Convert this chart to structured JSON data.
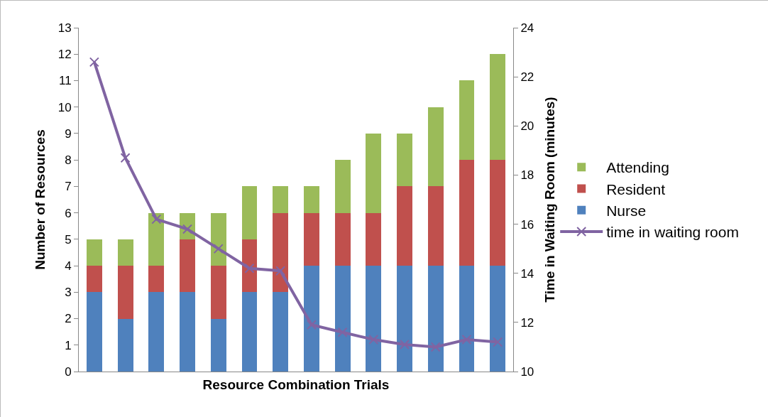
{
  "chart_data": {
    "type": "bar",
    "stacked": true,
    "xlabel": "Resource Combination Trials",
    "ylabel": "Number of Resources",
    "y2label": "Time in Waiting Room (minutes)",
    "categories": [
      null,
      null,
      null,
      null,
      null,
      null,
      null,
      null,
      null,
      null,
      null,
      null,
      null,
      null
    ],
    "series": [
      {
        "name": "Nurse",
        "color": "#4f81bd",
        "values": [
          3,
          2,
          3,
          3,
          2,
          3,
          3,
          4,
          4,
          4,
          4,
          4,
          4,
          4
        ]
      },
      {
        "name": "Resident",
        "color": "#c0504d",
        "values": [
          1,
          2,
          1,
          2,
          2,
          2,
          3,
          2,
          2,
          2,
          3,
          3,
          4,
          4
        ]
      },
      {
        "name": "Attending",
        "color": "#9bbb59",
        "values": [
          1,
          1,
          2,
          1,
          2,
          2,
          1,
          1,
          2,
          3,
          2,
          3,
          3,
          4
        ]
      },
      {
        "name": "time in waiting room",
        "type": "line",
        "axis": "y2",
        "color": "#8064a2",
        "marker": "cross",
        "values": [
          22.6,
          18.7,
          16.2,
          15.8,
          15.0,
          14.2,
          14.1,
          11.9,
          11.6,
          11.3,
          11.1,
          11.0,
          11.3,
          11.2
        ]
      }
    ],
    "ylim": [
      0,
      13
    ],
    "yticks": [
      0,
      1,
      2,
      3,
      4,
      5,
      6,
      7,
      8,
      9,
      10,
      11,
      12,
      13
    ],
    "y2lim": [
      10,
      24
    ],
    "y2ticks": [
      10,
      12,
      14,
      16,
      18,
      20,
      22,
      24
    ],
    "grid": false,
    "legend": "right"
  }
}
